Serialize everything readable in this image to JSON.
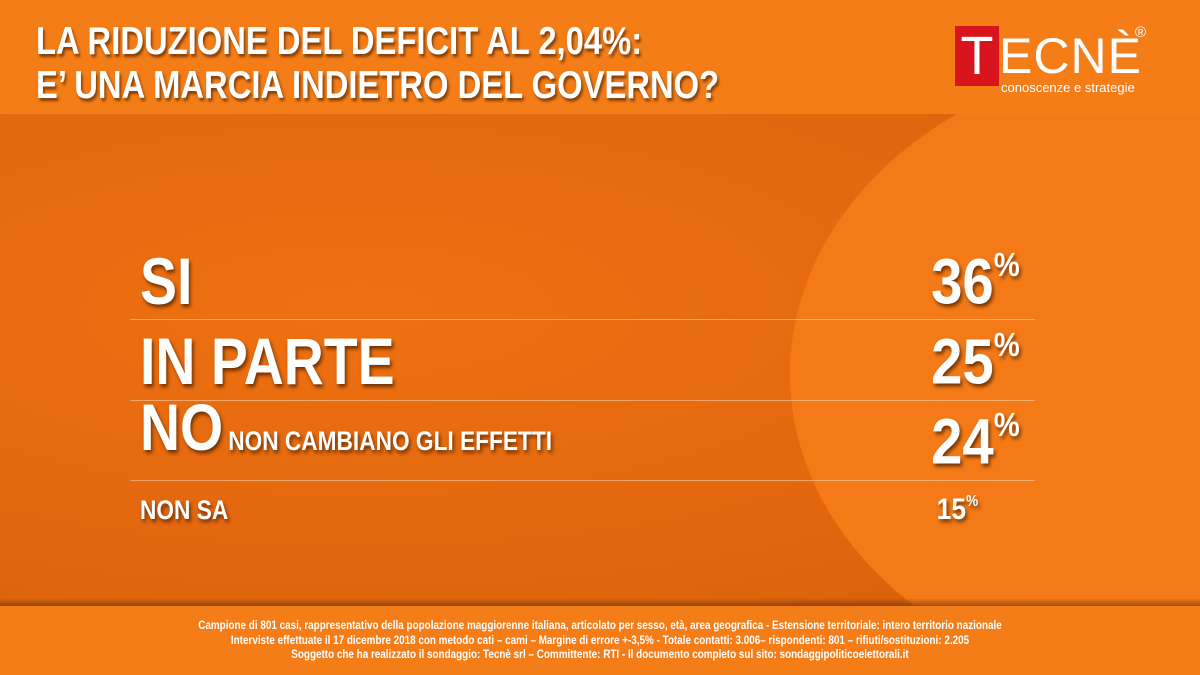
{
  "header": {
    "title_line1": "LA RIDUZIONE DEL DEFICIT AL 2,04%:",
    "title_line2": "E’ UNA MARCIA INDIETRO DEL GOVERNO?"
  },
  "logo": {
    "first_letter": "T",
    "rest": "ECNÈ",
    "registered": "®",
    "tagline": "conoscenze e strategie"
  },
  "chart_data": {
    "type": "table",
    "categories": [
      "SI",
      "IN PARTE",
      "NO",
      "NON SA"
    ],
    "values": [
      36,
      25,
      24,
      15
    ],
    "rows": [
      {
        "label": "SI",
        "sublabel": "",
        "value": 36,
        "value_text": "36",
        "unit": "%"
      },
      {
        "label": "IN PARTE",
        "sublabel": "",
        "value": 25,
        "value_text": "25",
        "unit": "%"
      },
      {
        "label": "NO",
        "sublabel": "NON CAMBIANO GLI EFFETTI",
        "value": 24,
        "value_text": "24",
        "unit": "%"
      },
      {
        "label": "NON SA",
        "sublabel": "",
        "value": 15,
        "value_text": "15",
        "unit": "%"
      }
    ]
  },
  "footer": {
    "line1": "Campione di 801 casi, rappresentativo della popolazione maggiorenne italiana, articolato per sesso, età, area geografica - Estensione territoriale: intero territorio nazionale",
    "line2": "Interviste effettuate il 17 dicembre 2018 con metodo cati – cami – Margine di errore +-3,5%  - Totale contatti: 3.006– rispondenti:  801 – rifiuti/sostituzioni: 2.205",
    "line3": "Soggetto che ha realizzato il sondaggio: Tecnè srl – Committente: RTI - Il documento completo sul sito: sondaggipoliticoelettorali.it"
  },
  "colors": {
    "background": "#f47a17",
    "panel": "#e0650d",
    "logo_red": "#d8151c",
    "text": "#ffffff"
  }
}
